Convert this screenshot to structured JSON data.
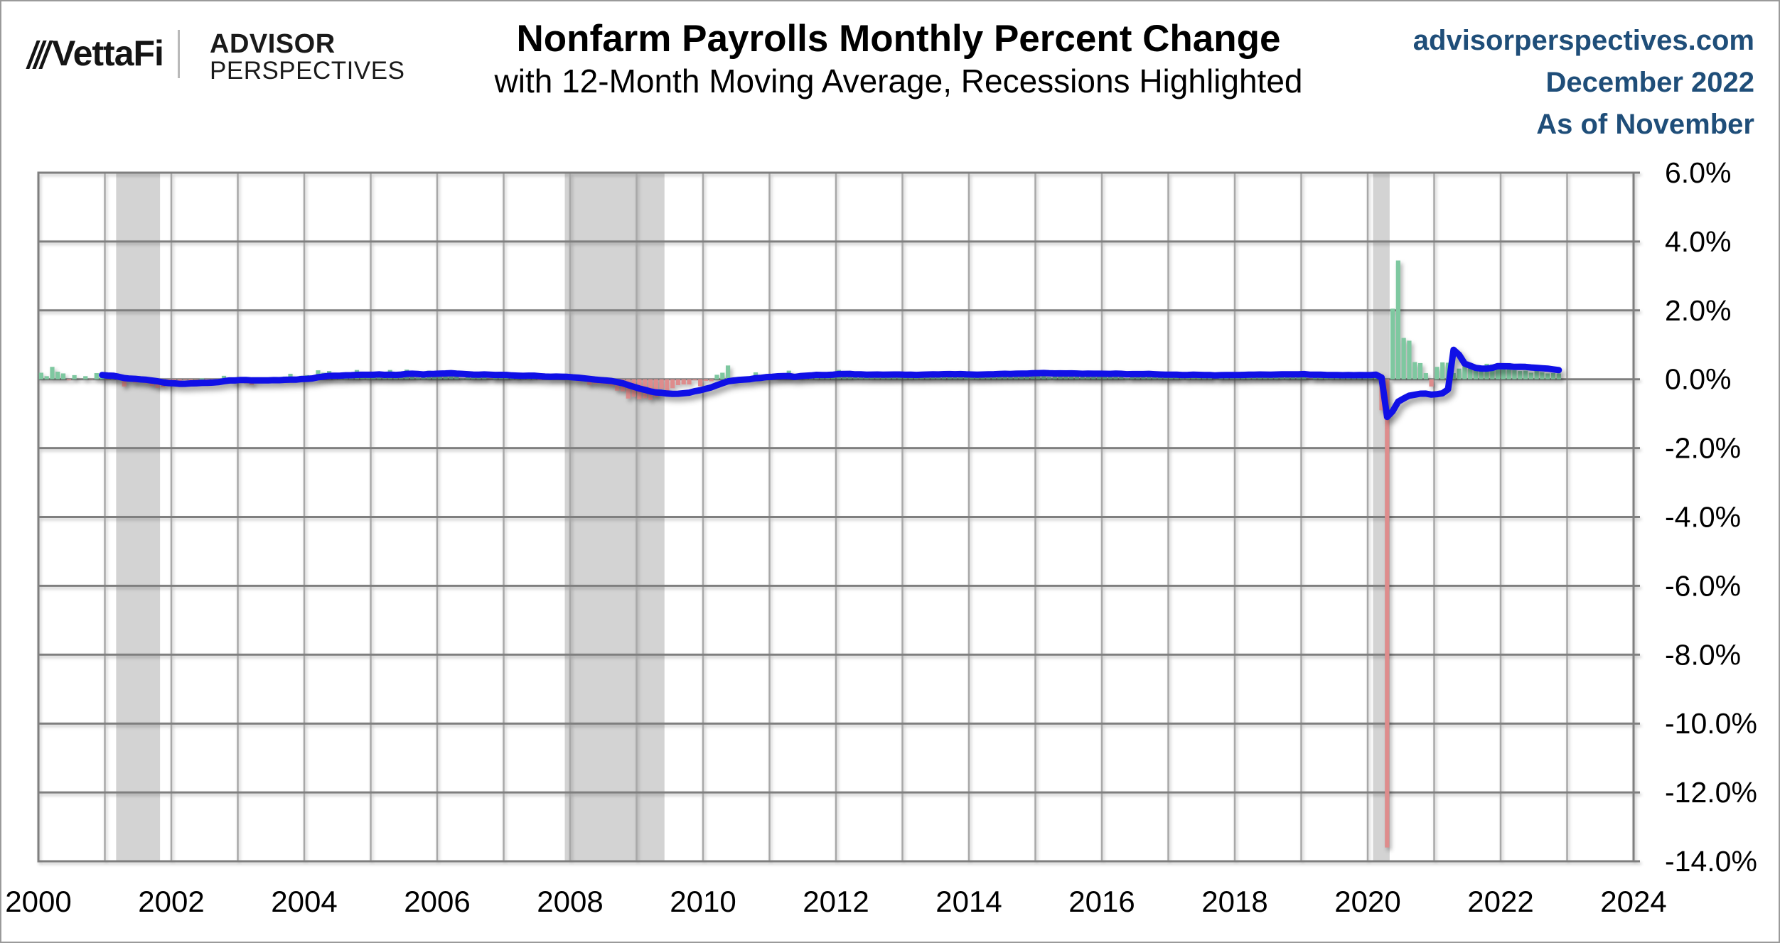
{
  "header": {
    "logo": {
      "brand": "VettaFi",
      "partner_line1": "ADVISOR",
      "partner_line2": "PERSPECTIVES"
    },
    "source": {
      "website": "advisorperspectives.com",
      "issue": "December 2022",
      "as_of": "As of November",
      "color": "#1F4E79"
    }
  },
  "chart_data": {
    "type": "bar",
    "title": "Nonfarm Payrolls Monthly Percent Change",
    "subtitle": "with 12-Month Moving Average, Recessions Highlighted",
    "x_start": "2000-01",
    "x_end": "2022-11",
    "xlim": [
      2000,
      2024
    ],
    "ylim": [
      -14,
      6
    ],
    "grid": true,
    "x_ticks": [
      "2000",
      "2002",
      "2004",
      "2006",
      "2008",
      "2010",
      "2012",
      "2014",
      "2016",
      "2018",
      "2020",
      "2022",
      "2024"
    ],
    "y_ticks": [
      {
        "value": 6,
        "label": "6.0%"
      },
      {
        "value": 4,
        "label": "4.0%"
      },
      {
        "value": 2,
        "label": "2.0%"
      },
      {
        "value": 0,
        "label": "0.0%"
      },
      {
        "value": -2,
        "label": "-2.0%"
      },
      {
        "value": -4,
        "label": "-4.0%"
      },
      {
        "value": -6,
        "label": "-6.0%"
      },
      {
        "value": -8,
        "label": "-8.0%"
      },
      {
        "value": -10,
        "label": "-10.0%"
      },
      {
        "value": -12,
        "label": "-12.0%"
      },
      {
        "value": -14,
        "label": "-14.0%"
      }
    ],
    "recessions": [
      {
        "start": 2001.17,
        "end": 2001.83
      },
      {
        "start": 2007.92,
        "end": 2009.42
      },
      {
        "start": 2020.08,
        "end": 2020.33
      }
    ],
    "series": [
      {
        "name": "Monthly percent change",
        "type": "bar",
        "values": [
          0.19,
          0.09,
          0.36,
          0.22,
          0.17,
          -0.03,
          0.12,
          0.0,
          0.09,
          -0.01,
          0.18,
          0.1,
          -0.01,
          0.05,
          -0.02,
          -0.21,
          -0.03,
          -0.1,
          -0.09,
          -0.12,
          -0.19,
          -0.25,
          -0.22,
          -0.14,
          -0.1,
          -0.11,
          -0.02,
          -0.07,
          -0.01,
          0.03,
          -0.07,
          -0.01,
          -0.04,
          0.1,
          0.01,
          -0.12,
          0.06,
          -0.12,
          -0.16,
          -0.04,
          0.0,
          0.0,
          0.02,
          -0.03,
          0.08,
          0.16,
          0.01,
          0.1,
          0.12,
          0.03,
          0.26,
          0.19,
          0.24,
          0.06,
          0.04,
          0.09,
          0.12,
          0.27,
          0.05,
          0.1,
          0.1,
          0.18,
          0.1,
          0.27,
          0.13,
          0.18,
          0.28,
          0.15,
          0.05,
          0.06,
          0.25,
          0.12,
          0.2,
          0.23,
          0.21,
          0.13,
          0.02,
          0.06,
          0.15,
          0.14,
          0.11,
          0.0,
          0.15,
          0.13,
          0.17,
          0.06,
          0.14,
          0.06,
          0.1,
          0.05,
          -0.02,
          -0.01,
          0.06,
          0.06,
          0.09,
          0.07,
          0.01,
          -0.06,
          -0.06,
          -0.16,
          -0.13,
          -0.13,
          -0.15,
          -0.19,
          -0.33,
          -0.35,
          -0.56,
          -0.51,
          -0.58,
          -0.55,
          -0.6,
          -0.52,
          -0.27,
          -0.36,
          -0.26,
          -0.17,
          -0.15,
          -0.15,
          -0.03,
          -0.2,
          -0.05,
          -0.06,
          0.13,
          0.19,
          0.4,
          -0.09,
          -0.05,
          -0.03,
          -0.04,
          0.2,
          0.09,
          0.07,
          0.05,
          0.13,
          0.16,
          0.25,
          0.08,
          0.17,
          0.08,
          0.09,
          0.17,
          0.14,
          0.13,
          0.15,
          0.27,
          0.17,
          0.18,
          0.07,
          0.08,
          0.07,
          0.12,
          0.11,
          0.12,
          0.17,
          0.15,
          0.16,
          0.15,
          0.21,
          0.1,
          0.15,
          0.16,
          0.11,
          0.1,
          0.2,
          0.14,
          0.14,
          0.2,
          0.06,
          0.1,
          0.16,
          0.15,
          0.22,
          0.17,
          0.19,
          0.18,
          0.15,
          0.2,
          0.17,
          0.23,
          0.18,
          0.14,
          0.19,
          0.06,
          0.18,
          0.19,
          0.16,
          0.2,
          0.11,
          0.1,
          0.21,
          0.2,
          0.19,
          0.12,
          0.16,
          0.16,
          0.11,
          0.03,
          0.21,
          0.2,
          0.12,
          0.17,
          0.09,
          0.11,
          0.11,
          0.15,
          0.16,
          0.03,
          0.12,
          0.11,
          0.16,
          0.13,
          0.15,
          0.01,
          0.19,
          0.15,
          0.12,
          0.12,
          0.22,
          0.1,
          0.12,
          0.18,
          0.14,
          0.12,
          0.19,
          0.07,
          0.19,
          0.13,
          0.15,
          0.21,
          0.0,
          0.1,
          0.14,
          0.06,
          0.12,
          0.11,
          0.14,
          0.14,
          0.12,
          0.17,
          0.12,
          0.21,
          0.19,
          -0.9,
          -13.6,
          2.05,
          3.45,
          1.2,
          1.12,
          0.5,
          0.47,
          0.18,
          -0.21,
          0.36,
          0.49,
          0.48,
          0.18,
          0.31,
          0.38,
          0.47,
          0.35,
          0.28,
          0.45,
          0.43,
          0.39,
          0.33,
          0.47,
          0.26,
          0.24,
          0.25,
          0.19,
          0.34,
          0.2,
          0.17,
          0.18,
          0.17
        ]
      },
      {
        "name": "12-Month Moving Average",
        "type": "line",
        "derived": "trailing 12-month mean of the bar series, first point 2000-12"
      }
    ],
    "colors": {
      "bar_positive": "#7EC8A0",
      "bar_negative": "#DE8C8C",
      "ma_line": "#1010E6",
      "recession_band": "#D3D3D3",
      "grid_horizontal": "#7F7F7F",
      "grid_vertical": "#A8A8A8",
      "frame": "#7F7F7F"
    }
  }
}
